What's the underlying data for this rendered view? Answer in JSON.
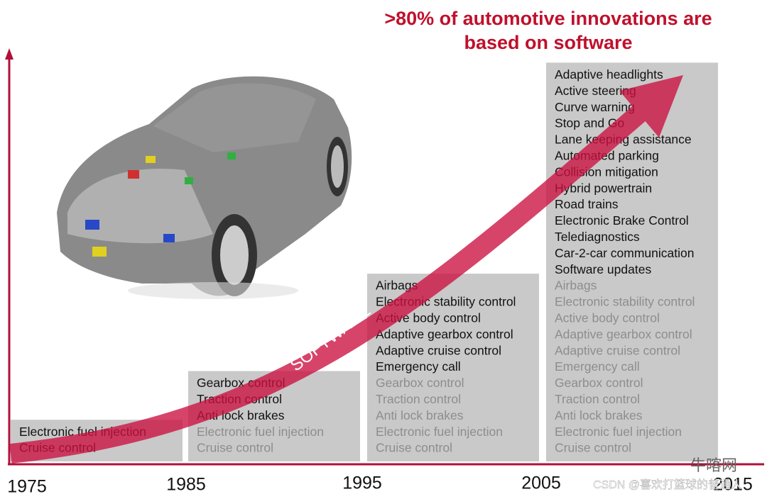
{
  "header": {
    "title_lines": [
      ">80% of automotive innovations are",
      "based on software"
    ]
  },
  "arrow_label": "SOFTWARE",
  "columns": [
    {
      "year": "1975",
      "new_items": [
        "Electronic fuel injection",
        "Cruise control"
      ],
      "previous_items": []
    },
    {
      "year": "1985",
      "new_items": [
        "Gearbox control",
        "Traction control",
        "Anti lock brakes"
      ],
      "previous_items": [
        "Electronic fuel injection",
        "Cruise control"
      ]
    },
    {
      "year": "1995",
      "new_items": [
        "Airbags",
        "Electronic stability control",
        "Active body control",
        "Adaptive gearbox control",
        "Adaptive cruise control",
        "Emergency call"
      ],
      "previous_items": [
        "Gearbox control",
        "Traction control",
        "Anti lock brakes",
        "Electronic fuel injection",
        "Cruise control"
      ]
    },
    {
      "year": "2005",
      "new_items": [
        "Adaptive headlights",
        "Active steering",
        "Curve warning",
        "Stop and Go",
        "Lane keeping assistance",
        "Automated parking",
        "Collision mitigation",
        "Hybrid powertrain",
        "Road trains",
        "Electronic Brake Control",
        "Telediagnostics",
        "Car-2-car communication",
        "Software updates"
      ],
      "previous_items": [
        "Airbags",
        "Electronic stability control",
        "Active body control",
        "Adaptive gearbox control",
        "Adaptive cruise control",
        "Emergency call",
        "Gearbox control",
        "Traction control",
        "Anti lock brakes",
        "Electronic fuel injection",
        "Cruise control"
      ]
    }
  ],
  "last_year": "2015",
  "watermark": {
    "site": "牛喀网",
    "credit": "CSDN @喜欢打篮球的普通人"
  }
}
